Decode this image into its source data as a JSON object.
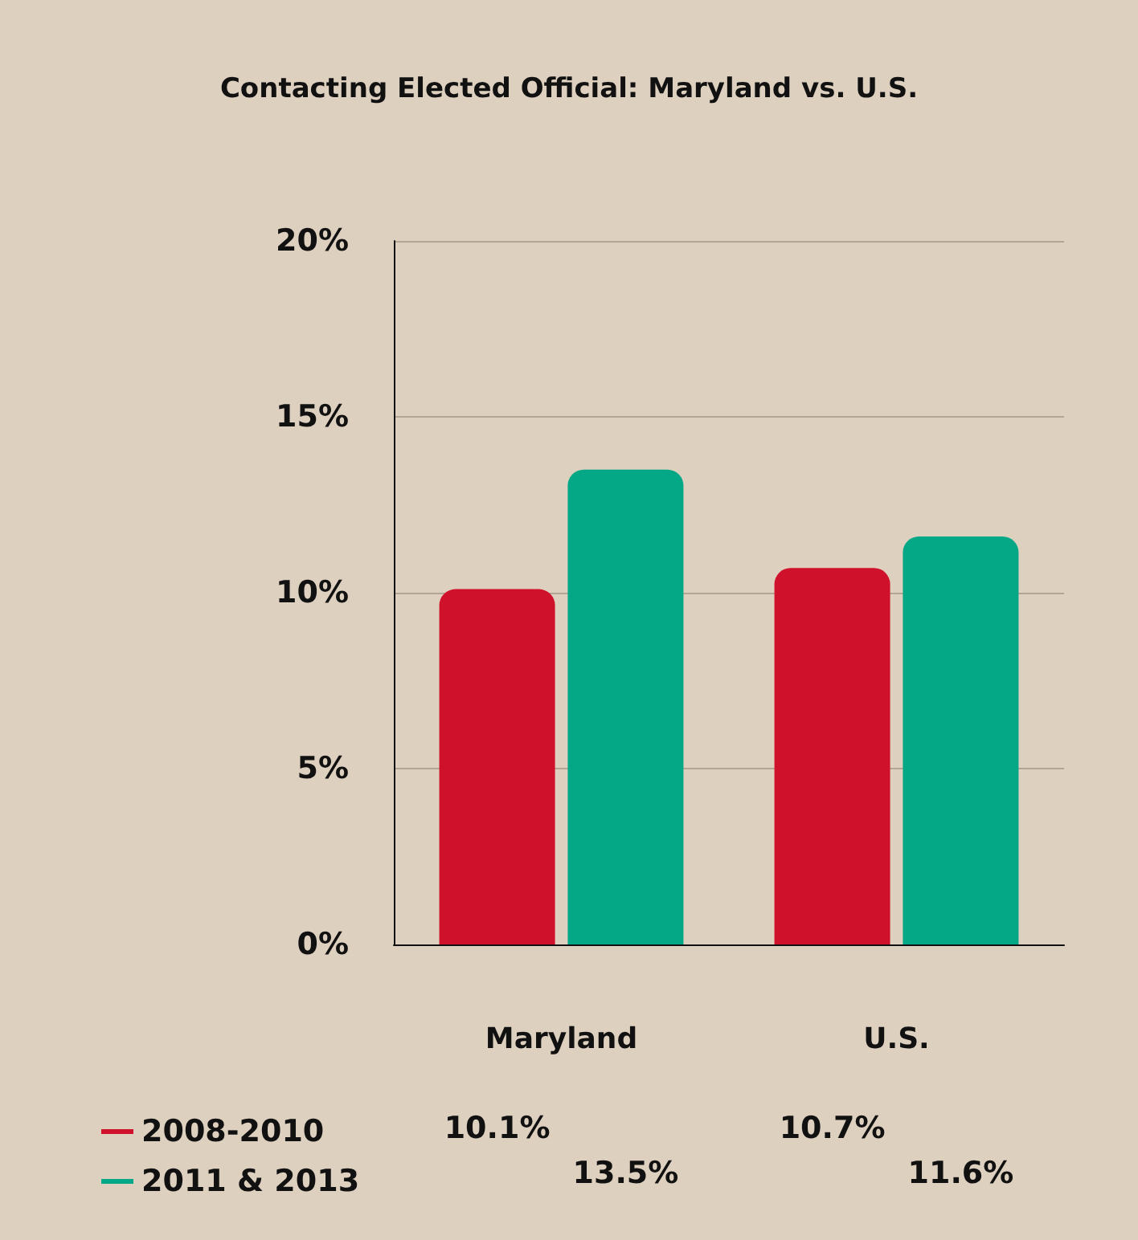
{
  "chart_data": {
    "type": "bar",
    "title": "Contacting Elected Official: Maryland vs. U.S.",
    "categories": [
      "Maryland",
      "U.S."
    ],
    "series": [
      {
        "name": "2008-2010",
        "color": "#d0112b",
        "values": [
          10.1,
          10.7
        ],
        "value_labels": [
          "10.1%",
          "10.7%"
        ]
      },
      {
        "name": "2011 & 2013",
        "color": "#05a886",
        "values": [
          13.5,
          11.6
        ],
        "value_labels": [
          "13.5%",
          "11.6%"
        ]
      }
    ],
    "ylim": [
      0,
      20
    ],
    "yticks": [
      {
        "value": 0,
        "label": "0%"
      },
      {
        "value": 5,
        "label": "5%"
      },
      {
        "value": 10,
        "label": "10%"
      },
      {
        "value": 15,
        "label": "15%"
      },
      {
        "value": 20,
        "label": "20%"
      }
    ],
    "grid": "y",
    "legend": "bottom left"
  }
}
